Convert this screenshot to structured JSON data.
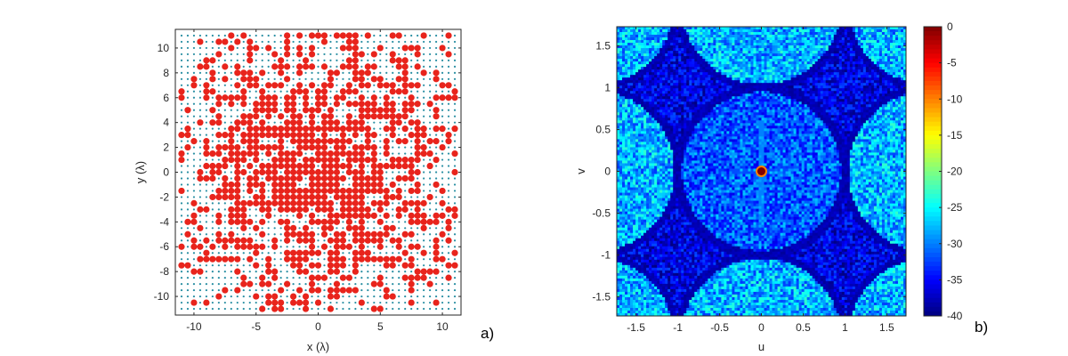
{
  "panels": {
    "a": {
      "label": "a)"
    },
    "b": {
      "label": "b)"
    }
  },
  "chart_data": [
    {
      "type": "scatter",
      "panel": "a",
      "xlabel": "x (λ)",
      "ylabel": "y (λ)",
      "xlim": [
        -11.5,
        11.5
      ],
      "ylim": [
        -11.5,
        11.5
      ],
      "xticks": [
        -10,
        -5,
        0,
        5,
        10
      ],
      "xtick_labels": [
        "-10",
        "-5",
        "0",
        "5",
        "10"
      ],
      "yticks": [
        -10,
        -8,
        -6,
        -4,
        -2,
        0,
        2,
        4,
        6,
        8,
        10
      ],
      "ytick_labels": [
        "-10",
        "-8",
        "-6",
        "-4",
        "-2",
        "0",
        "2",
        "4",
        "6",
        "8",
        "10"
      ],
      "grid": {
        "x_min": -11,
        "x_max": 11,
        "y_min": -11,
        "y_max": 11,
        "step": 0.5
      },
      "colors": {
        "active": "#e8241c",
        "inactive": "#2a8fa3"
      },
      "series": [
        {
          "role": "inactive grid elements",
          "marker": "small dot"
        },
        {
          "role": "active elements",
          "marker": "large filled circle"
        }
      ]
    },
    {
      "type": "heatmap",
      "panel": "b",
      "xlabel": "u",
      "ylabel": "v",
      "xlim": [
        -1.73,
        1.73
      ],
      "ylim": [
        -1.73,
        1.73
      ],
      "xticks": [
        -1.5,
        -1,
        -0.5,
        0,
        0.5,
        1,
        1.5
      ],
      "xtick_labels": [
        "-1.5",
        "-1",
        "-0.5",
        "0",
        "0.5",
        "1",
        "1.5"
      ],
      "yticks": [
        -1.5,
        -1,
        -0.5,
        0,
        0.5,
        1,
        1.5
      ],
      "ytick_labels": [
        "-1.5",
        "-1",
        "-0.5",
        "0",
        "0.5",
        "1",
        "1.5"
      ],
      "colorbar": {
        "range": [
          -40,
          0
        ],
        "ticks": [
          0,
          -5,
          -10,
          -15,
          -20,
          -25,
          -30,
          -35,
          -40
        ],
        "tick_labels": [
          "0",
          "-5",
          "-10",
          "-15",
          "-20",
          "-25",
          "-30",
          "-35",
          "-40"
        ],
        "colormap": "jet"
      },
      "peak": {
        "u": 0,
        "v": 0,
        "value": 0
      },
      "grating_lobe_spacing": 2
    }
  ]
}
